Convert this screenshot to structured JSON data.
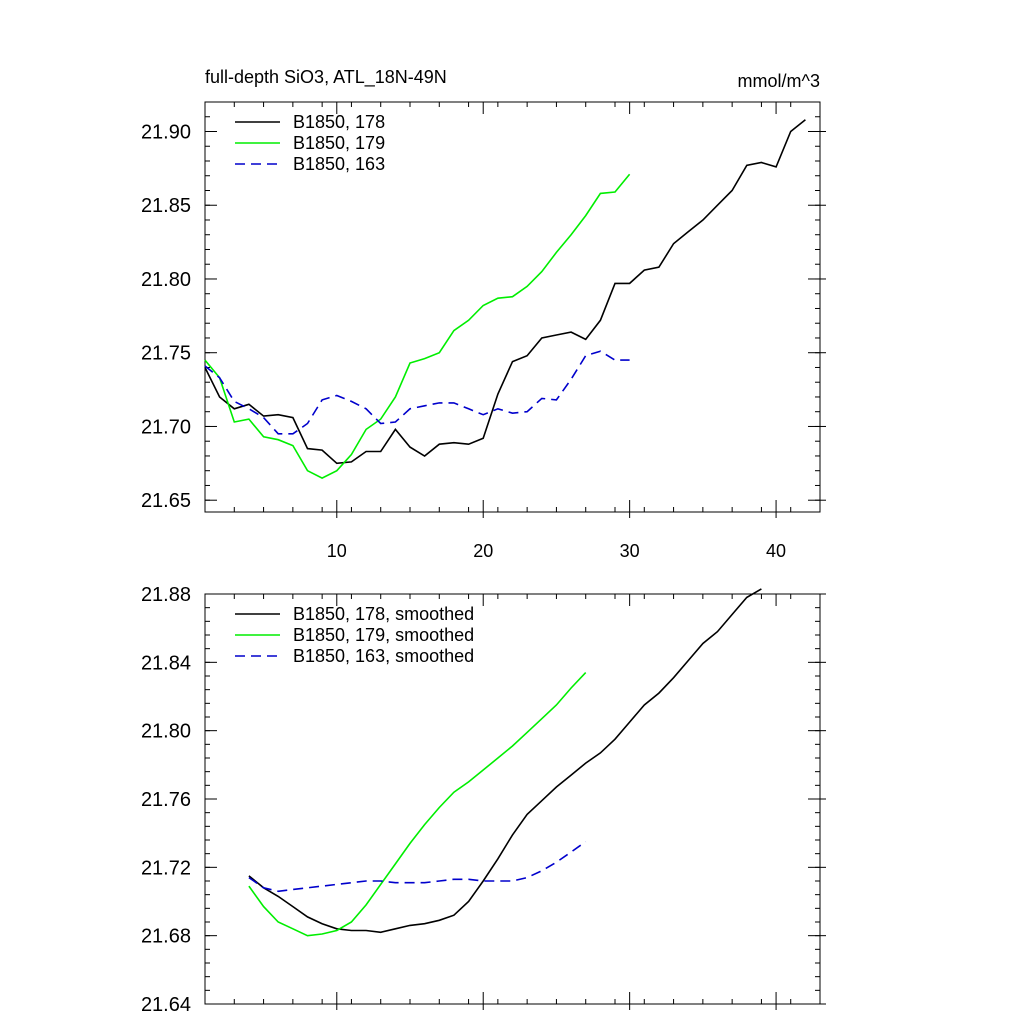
{
  "chart_data": [
    {
      "type": "line",
      "title": "full-depth SiO3, ATL_18N-49N",
      "units": "mmol/m^3",
      "xlim": [
        1,
        43
      ],
      "ylim": [
        21.642,
        21.92
      ],
      "xticks": [
        10,
        20,
        30,
        40
      ],
      "yticks": [
        21.65,
        21.7,
        21.75,
        21.8,
        21.85,
        21.9
      ],
      "ytick_labels": [
        "21.65",
        "21.70",
        "21.75",
        "21.80",
        "21.85",
        "21.90"
      ],
      "legend_position": "top-left",
      "series": [
        {
          "name": "B1850, 178",
          "color": "#000000",
          "dash": "solid",
          "x": [
            1,
            2,
            3,
            4,
            5,
            6,
            7,
            8,
            9,
            10,
            11,
            12,
            13,
            14,
            15,
            16,
            17,
            18,
            19,
            20,
            21,
            22,
            23,
            24,
            25,
            26,
            27,
            28,
            29,
            30,
            31,
            32,
            33,
            34,
            35,
            36,
            37,
            38,
            39,
            40,
            41,
            42
          ],
          "y": [
            21.74,
            21.72,
            21.712,
            21.715,
            21.707,
            21.708,
            21.706,
            21.685,
            21.684,
            21.675,
            21.676,
            21.683,
            21.683,
            21.698,
            21.686,
            21.68,
            21.688,
            21.689,
            21.688,
            21.692,
            21.722,
            21.744,
            21.748,
            21.76,
            21.762,
            21.764,
            21.759,
            21.772,
            21.797,
            21.797,
            21.806,
            21.808,
            21.824,
            21.832,
            21.84,
            21.85,
            21.86,
            21.877,
            21.879,
            21.876,
            21.9,
            21.908
          ]
        },
        {
          "name": "B1850, 179",
          "color": "#00ee00",
          "dash": "solid",
          "x": [
            1,
            2,
            3,
            4,
            5,
            6,
            7,
            8,
            9,
            10,
            11,
            12,
            13,
            14,
            15,
            16,
            17,
            18,
            19,
            20,
            21,
            22,
            23,
            24,
            25,
            26,
            27,
            28,
            29,
            30
          ],
          "y": [
            21.745,
            21.733,
            21.703,
            21.705,
            21.693,
            21.691,
            21.687,
            21.67,
            21.665,
            21.67,
            21.681,
            21.698,
            21.705,
            21.72,
            21.743,
            21.746,
            21.75,
            21.765,
            21.772,
            21.782,
            21.787,
            21.788,
            21.795,
            21.805,
            21.818,
            21.83,
            21.843,
            21.858,
            21.859,
            21.871
          ]
        },
        {
          "name": "B1850, 163",
          "color": "#0000cc",
          "dash": "dashed",
          "x": [
            1,
            2,
            3,
            4,
            5,
            6,
            7,
            8,
            9,
            10,
            11,
            12,
            13,
            14,
            15,
            16,
            17,
            18,
            19,
            20,
            21,
            22,
            23,
            24,
            25,
            26,
            27,
            28,
            29,
            30
          ],
          "y": [
            21.741,
            21.733,
            21.717,
            21.712,
            21.706,
            21.695,
            21.695,
            21.702,
            21.718,
            21.721,
            21.717,
            21.712,
            21.702,
            21.703,
            21.712,
            21.714,
            21.716,
            21.716,
            21.712,
            21.708,
            21.712,
            21.709,
            21.71,
            21.719,
            21.718,
            21.732,
            21.748,
            21.751,
            21.745,
            21.745
          ]
        }
      ]
    },
    {
      "type": "line",
      "title": "",
      "xlim": [
        1,
        43
      ],
      "ylim": [
        21.64,
        21.88
      ],
      "xticks": [
        10,
        20,
        30,
        40
      ],
      "yticks": [
        21.64,
        21.68,
        21.72,
        21.76,
        21.8,
        21.84,
        21.88
      ],
      "ytick_labels": [
        "21.64",
        "21.68",
        "21.72",
        "21.76",
        "21.80",
        "21.84",
        "21.88"
      ],
      "legend_position": "top-left",
      "series": [
        {
          "name": "B1850, 178, smoothed",
          "color": "#000000",
          "dash": "solid",
          "x": [
            4,
            5,
            6,
            7,
            8,
            9,
            10,
            11,
            12,
            13,
            14,
            15,
            16,
            17,
            18,
            19,
            20,
            21,
            22,
            23,
            24,
            25,
            26,
            27,
            28,
            29,
            30,
            31,
            32,
            33,
            34,
            35,
            36,
            37,
            38,
            39
          ],
          "y": [
            21.715,
            21.708,
            21.703,
            21.697,
            21.691,
            21.687,
            21.684,
            21.683,
            21.683,
            21.682,
            21.684,
            21.686,
            21.687,
            21.689,
            21.692,
            21.7,
            21.712,
            21.725,
            21.739,
            21.751,
            21.759,
            21.767,
            21.774,
            21.781,
            21.787,
            21.795,
            21.805,
            21.815,
            21.822,
            21.831,
            21.841,
            21.851,
            21.858,
            21.868,
            21.878,
            21.883
          ]
        },
        {
          "name": "B1850, 179, smoothed",
          "color": "#00ee00",
          "dash": "solid",
          "x": [
            4,
            5,
            6,
            7,
            8,
            9,
            10,
            11,
            12,
            13,
            14,
            15,
            16,
            17,
            18,
            19,
            20,
            21,
            22,
            23,
            24,
            25,
            26,
            27
          ],
          "y": [
            21.709,
            21.697,
            21.688,
            21.684,
            21.68,
            21.681,
            21.683,
            21.688,
            21.698,
            21.71,
            21.722,
            21.734,
            21.745,
            21.755,
            21.764,
            21.77,
            21.777,
            21.784,
            21.791,
            21.799,
            21.807,
            21.815,
            21.825,
            21.834
          ]
        },
        {
          "name": "B1850, 163, smoothed",
          "color": "#0000cc",
          "dash": "dashed",
          "x": [
            4,
            5,
            6,
            7,
            8,
            9,
            10,
            11,
            12,
            13,
            14,
            15,
            16,
            17,
            18,
            19,
            20,
            21,
            22,
            23,
            24,
            25,
            26,
            27
          ],
          "y": [
            21.714,
            21.708,
            21.706,
            21.707,
            21.708,
            21.709,
            21.71,
            21.711,
            21.712,
            21.712,
            21.711,
            21.711,
            21.711,
            21.712,
            21.713,
            21.713,
            21.712,
            21.712,
            21.712,
            21.714,
            21.718,
            21.723,
            21.729,
            21.735
          ]
        }
      ]
    }
  ]
}
